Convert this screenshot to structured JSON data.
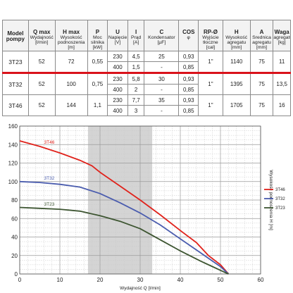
{
  "table": {
    "headers": [
      {
        "title": "Model",
        "sub": "pompy"
      },
      {
        "title": "Q max",
        "sub": "Wydajność\n[l/min]"
      },
      {
        "title": "H max",
        "sub": "Wysokość\npodnoszenia\n[m]"
      },
      {
        "title": "P",
        "sub": "Moc\nsilnika\n[kW]"
      },
      {
        "title": "U",
        "sub": "Napięcie\n[V]"
      },
      {
        "title": "I",
        "sub": "Prąd\n[A]"
      },
      {
        "title": "C",
        "sub": "Kondensator\n[µF]"
      },
      {
        "title": "COS",
        "sub": "φ"
      },
      {
        "title": "RP-Ø",
        "sub": "Wyjście\ntłoczne\n[cal]"
      },
      {
        "title": "H",
        "sub": "Wysokość\nagregatu\n[mm]"
      },
      {
        "title": "A",
        "sub": "Średnica\nagregatu\n[mm]"
      },
      {
        "title": "Waga",
        "sub": "agregatu\n[kg]"
      }
    ],
    "rows": [
      {
        "model": "3T23",
        "q": "52",
        "h": "72",
        "p": "0,55",
        "u": [
          "230",
          "400"
        ],
        "i": [
          "4,5",
          "1,5"
        ],
        "c": [
          "25",
          "-"
        ],
        "cos": [
          "0,93",
          "0,85"
        ],
        "rp": "1\"",
        "hh": "1140",
        "a": "75",
        "w": "11"
      },
      {
        "model": "3T32",
        "q": "52",
        "h": "100",
        "p": "0,75",
        "u": [
          "230",
          "400"
        ],
        "i": [
          "5,8",
          "2"
        ],
        "c": [
          "30",
          "-"
        ],
        "cos": [
          "0,93",
          "0,85"
        ],
        "rp": "1\"",
        "hh": "1395",
        "a": "75",
        "w": "13,5"
      },
      {
        "model": "3T46",
        "q": "52",
        "h": "144",
        "p": "1,1",
        "u": [
          "230",
          "400"
        ],
        "i": [
          "7,7",
          "3"
        ],
        "c": [
          "35",
          "-"
        ],
        "cos": [
          "0,93",
          "0,85"
        ],
        "rp": "1\"",
        "hh": "1705",
        "a": "75",
        "w": "16"
      }
    ]
  },
  "chart_data": {
    "type": "line",
    "xlabel": "Wydajność Q [l/min]",
    "ylabel": "Wysokość podnoszenia H [m]",
    "xlim": [
      0,
      60
    ],
    "ylim": [
      0,
      160
    ],
    "xticks": [
      0,
      10,
      20,
      30,
      40,
      50,
      60
    ],
    "yticks": [
      0,
      20,
      40,
      60,
      80,
      100,
      120,
      140,
      160
    ],
    "grid": true,
    "shaded_range_x": [
      17,
      33
    ],
    "legend_position": "right",
    "series": [
      {
        "name": "3T46",
        "color": "#e0221b",
        "x": [
          0,
          5,
          10,
          15,
          18,
          20,
          25,
          30,
          35,
          40,
          44,
          47,
          50,
          51,
          52
        ],
        "y": [
          144,
          138,
          131,
          123,
          117,
          110,
          95,
          80,
          64,
          47,
          34,
          20,
          10,
          5,
          0
        ]
      },
      {
        "name": "3T32",
        "color": "#4a5cae",
        "x": [
          0,
          5,
          10,
          15,
          20,
          25,
          30,
          35,
          40,
          45,
          48,
          50,
          51,
          52
        ],
        "y": [
          100,
          99,
          97,
          94,
          87,
          77,
          66,
          53,
          38,
          23,
          14,
          8,
          4,
          0
        ]
      },
      {
        "name": "3T23",
        "color": "#3d5531",
        "x": [
          0,
          5,
          10,
          15,
          20,
          25,
          30,
          35,
          40,
          45,
          48,
          50,
          51,
          52
        ],
        "y": [
          72,
          71,
          70,
          68,
          63,
          57,
          49,
          37,
          25,
          14,
          8,
          4,
          2,
          0
        ]
      }
    ]
  }
}
